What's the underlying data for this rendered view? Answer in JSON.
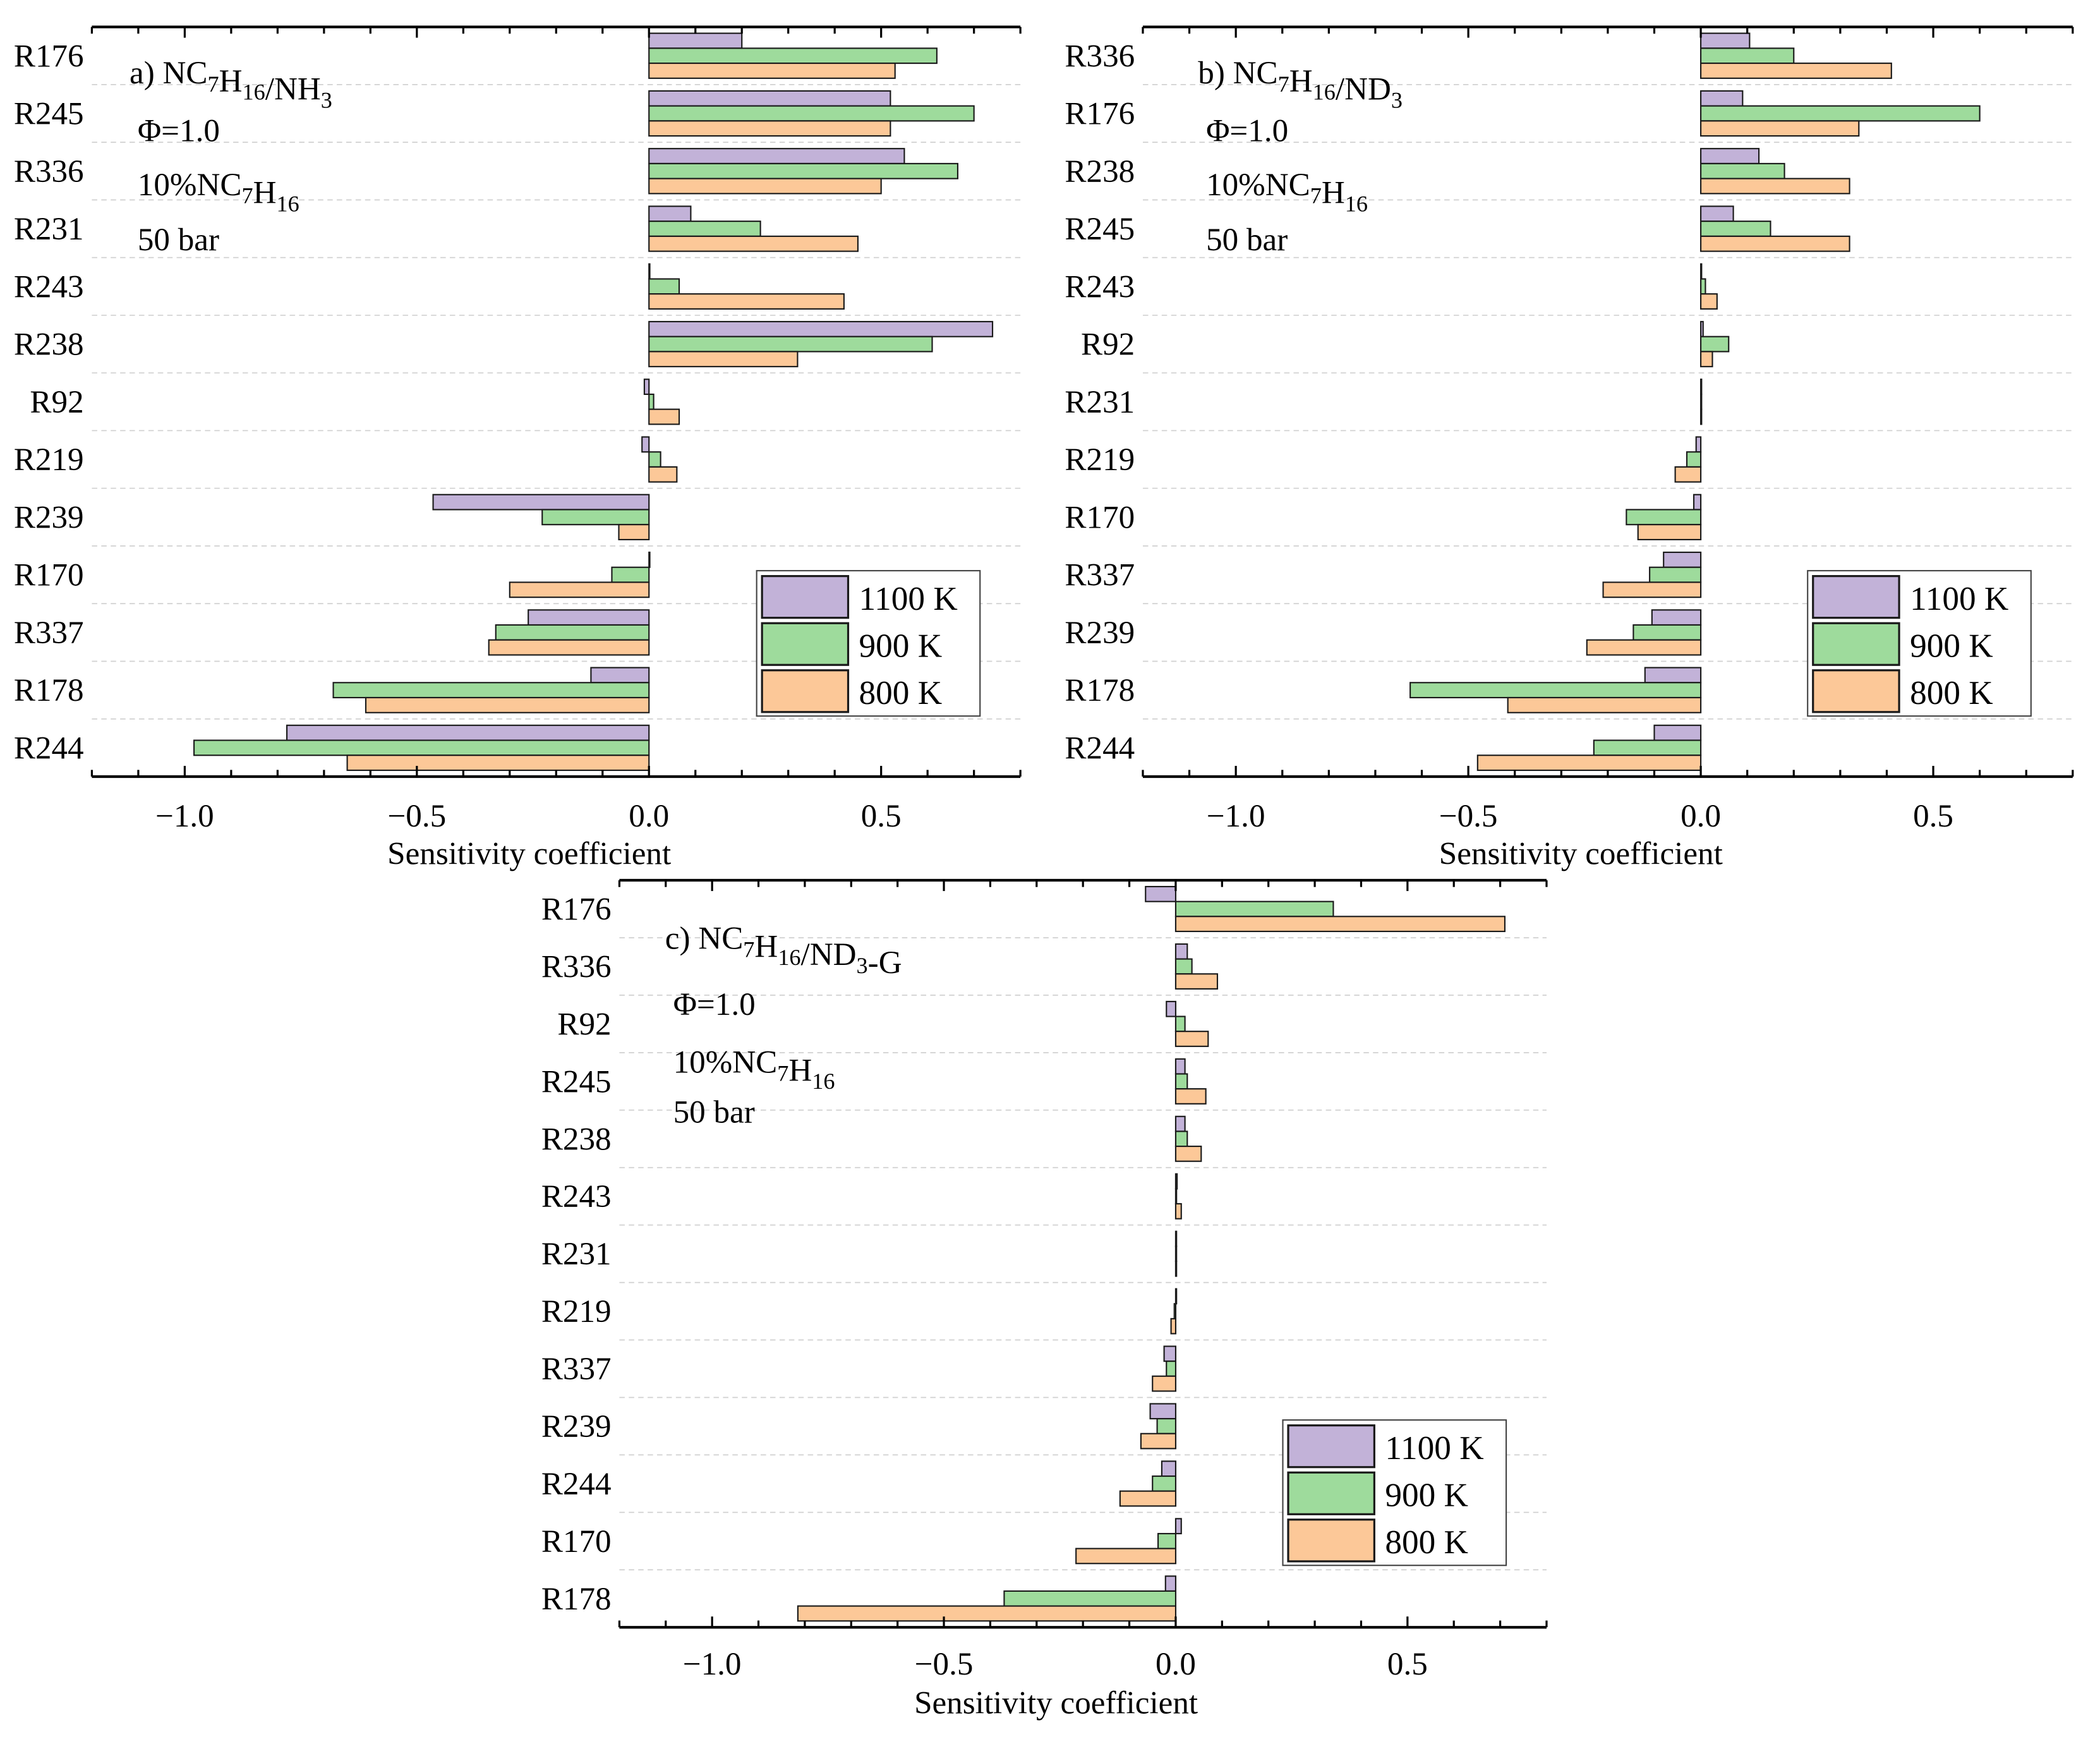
{
  "colors": {
    "1100 K": "#c2b2d8",
    "900 K": "#9edb9c",
    "800 K": "#fcc898",
    "edge": "#1a1a1a",
    "grid": "#d0d0d0"
  },
  "chart_data": [
    {
      "type": "bar",
      "orientation": "horizontal",
      "panel": "a",
      "annotations": [
        "a) NC7H16/NH3",
        "Φ=1.0",
        "10%NC7H16",
        "50 bar"
      ],
      "xlabel": "Sensitivity coefficient",
      "xlim": [
        -1.2,
        0.8
      ],
      "xticks": [
        -1.0,
        -0.5,
        0.0,
        0.5
      ],
      "xtick_labels": [
        "−1.0",
        "−0.5",
        "0.0",
        "0.5"
      ],
      "legend": {
        "placement": "lower-right",
        "entries": [
          "1100 K",
          "900 K",
          "800 K"
        ]
      },
      "categories": [
        "R176",
        "R245",
        "R336",
        "R231",
        "R243",
        "R238",
        "R92",
        "R219",
        "R239",
        "R170",
        "R337",
        "R178",
        "R244"
      ],
      "series": [
        {
          "name": "1100 K",
          "values": [
            0.2,
            0.52,
            0.55,
            0.09,
            0.0,
            0.74,
            -0.01,
            -0.015,
            -0.465,
            0.0,
            -0.26,
            -0.125,
            -0.78
          ]
        },
        {
          "name": "900 K",
          "values": [
            0.62,
            0.7,
            0.665,
            0.24,
            0.065,
            0.61,
            0.01,
            0.025,
            -0.23,
            -0.08,
            -0.33,
            -0.68,
            -0.98
          ]
        },
        {
          "name": "800 K",
          "values": [
            0.53,
            0.52,
            0.5,
            0.45,
            0.42,
            0.32,
            0.065,
            0.06,
            -0.065,
            -0.3,
            -0.345,
            -0.61,
            -0.65
          ]
        }
      ]
    },
    {
      "type": "bar",
      "orientation": "horizontal",
      "panel": "b",
      "annotations": [
        "b) NC7H16/ND3",
        "Φ=1.0",
        "10%NC7H16",
        "50 bar"
      ],
      "xlabel": "Sensitivity coefficient",
      "xlim": [
        -1.2,
        0.8
      ],
      "xticks": [
        -1.0,
        -0.5,
        0.0,
        0.5
      ],
      "xtick_labels": [
        "−1.0",
        "−0.5",
        "0.0",
        "0.5"
      ],
      "legend": {
        "placement": "lower-right",
        "entries": [
          "1100 K",
          "900 K",
          "800 K"
        ]
      },
      "categories": [
        "R336",
        "R176",
        "R238",
        "R245",
        "R243",
        "R92",
        "R231",
        "R219",
        "R170",
        "R337",
        "R239",
        "R178",
        "R244"
      ],
      "series": [
        {
          "name": "1100 K",
          "values": [
            0.105,
            0.09,
            0.125,
            0.07,
            0.0,
            0.005,
            0.0,
            -0.01,
            -0.015,
            -0.08,
            -0.105,
            -0.12,
            -0.1
          ]
        },
        {
          "name": "900 K",
          "values": [
            0.2,
            0.6,
            0.18,
            0.15,
            0.01,
            0.06,
            0.0,
            -0.03,
            -0.16,
            -0.11,
            -0.145,
            -0.625,
            -0.23
          ]
        },
        {
          "name": "800 K",
          "values": [
            0.41,
            0.34,
            0.32,
            0.32,
            0.035,
            0.025,
            0.0,
            -0.055,
            -0.135,
            -0.21,
            -0.245,
            -0.415,
            -0.48
          ]
        }
      ]
    },
    {
      "type": "bar",
      "orientation": "horizontal",
      "panel": "c",
      "annotations": [
        "c) NC7H16/ND3-G",
        "Φ=1.0",
        "10%NC7H16",
        "50 bar"
      ],
      "xlabel": "Sensitivity coefficient",
      "xlim": [
        -1.2,
        0.8
      ],
      "xticks": [
        -1.0,
        -0.5,
        0.0,
        0.5
      ],
      "xtick_labels": [
        "−1.0",
        "−0.5",
        "0.0",
        "0.5"
      ],
      "legend": {
        "placement": "lower-right",
        "entries": [
          "1100 K",
          "900 K",
          "800 K"
        ]
      },
      "categories": [
        "R176",
        "R336",
        "R92",
        "R245",
        "R238",
        "R243",
        "R231",
        "R219",
        "R337",
        "R239",
        "R244",
        "R170",
        "R178"
      ],
      "series": [
        {
          "name": "1100 K",
          "values": [
            -0.065,
            0.025,
            -0.02,
            0.02,
            0.02,
            0.003,
            0.0,
            0.0,
            -0.025,
            -0.055,
            -0.03,
            0.012,
            -0.022
          ]
        },
        {
          "name": "900 K",
          "values": [
            0.34,
            0.035,
            0.02,
            0.025,
            0.025,
            0.0,
            0.0,
            -0.003,
            -0.02,
            -0.04,
            -0.05,
            -0.038,
            -0.37
          ]
        },
        {
          "name": "800 K",
          "values": [
            0.71,
            0.09,
            0.07,
            0.065,
            0.055,
            0.012,
            0.0,
            -0.01,
            -0.05,
            -0.075,
            -0.12,
            -0.215,
            -0.815
          ]
        }
      ]
    }
  ]
}
